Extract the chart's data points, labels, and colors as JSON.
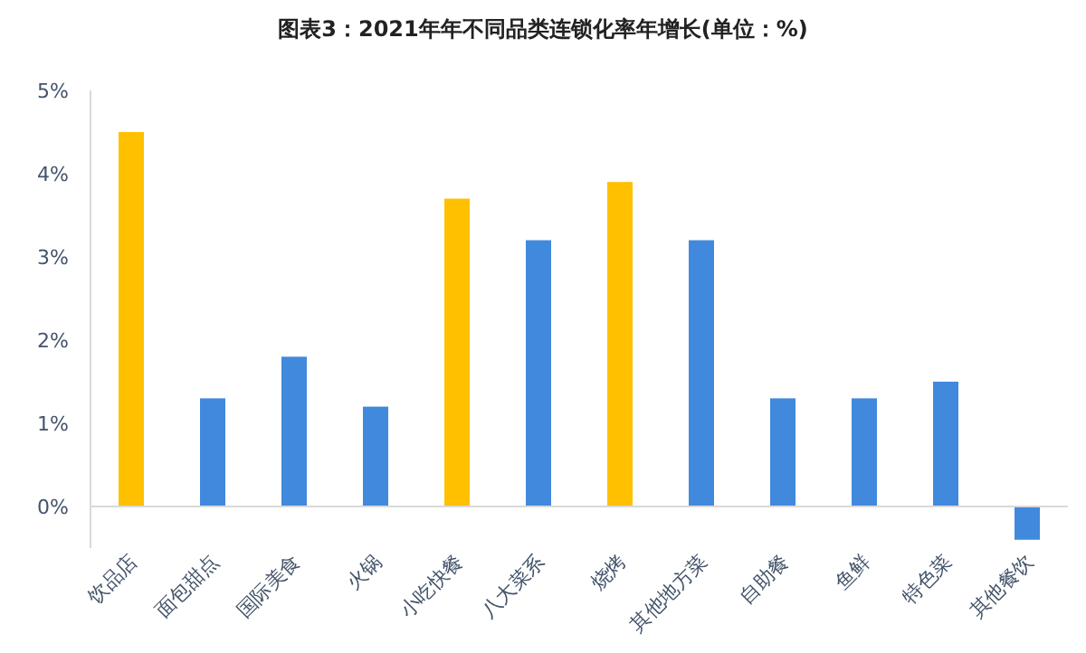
{
  "chart_data": {
    "type": "bar",
    "title": "图表3：2021年年不同品类连锁化率年增长(单位：%)",
    "categories": [
      "饮品店",
      "面包甜点",
      "国际美食",
      "火锅",
      "小吃快餐",
      "八大菜系",
      "烧烤",
      "其他地方菜",
      "自助餐",
      "鱼鲜",
      "特色菜",
      "其他餐饮"
    ],
    "values": [
      4.5,
      1.3,
      1.8,
      1.2,
      3.7,
      3.2,
      3.9,
      3.2,
      1.3,
      1.3,
      1.5,
      -0.4
    ],
    "colors": [
      "#ffc000",
      "#4189dd",
      "#4189dd",
      "#4189dd",
      "#ffc000",
      "#4189dd",
      "#ffc000",
      "#4189dd",
      "#4189dd",
      "#4189dd",
      "#4189dd",
      "#4189dd"
    ],
    "ylim": [
      -0.5,
      5
    ],
    "yticks": [
      {
        "value": 0,
        "label": "0%"
      },
      {
        "value": 1,
        "label": "1%"
      },
      {
        "value": 2,
        "label": "2%"
      },
      {
        "value": 3,
        "label": "3%"
      },
      {
        "value": 4,
        "label": "4%"
      },
      {
        "value": 5,
        "label": "5%"
      }
    ],
    "grid": false
  }
}
